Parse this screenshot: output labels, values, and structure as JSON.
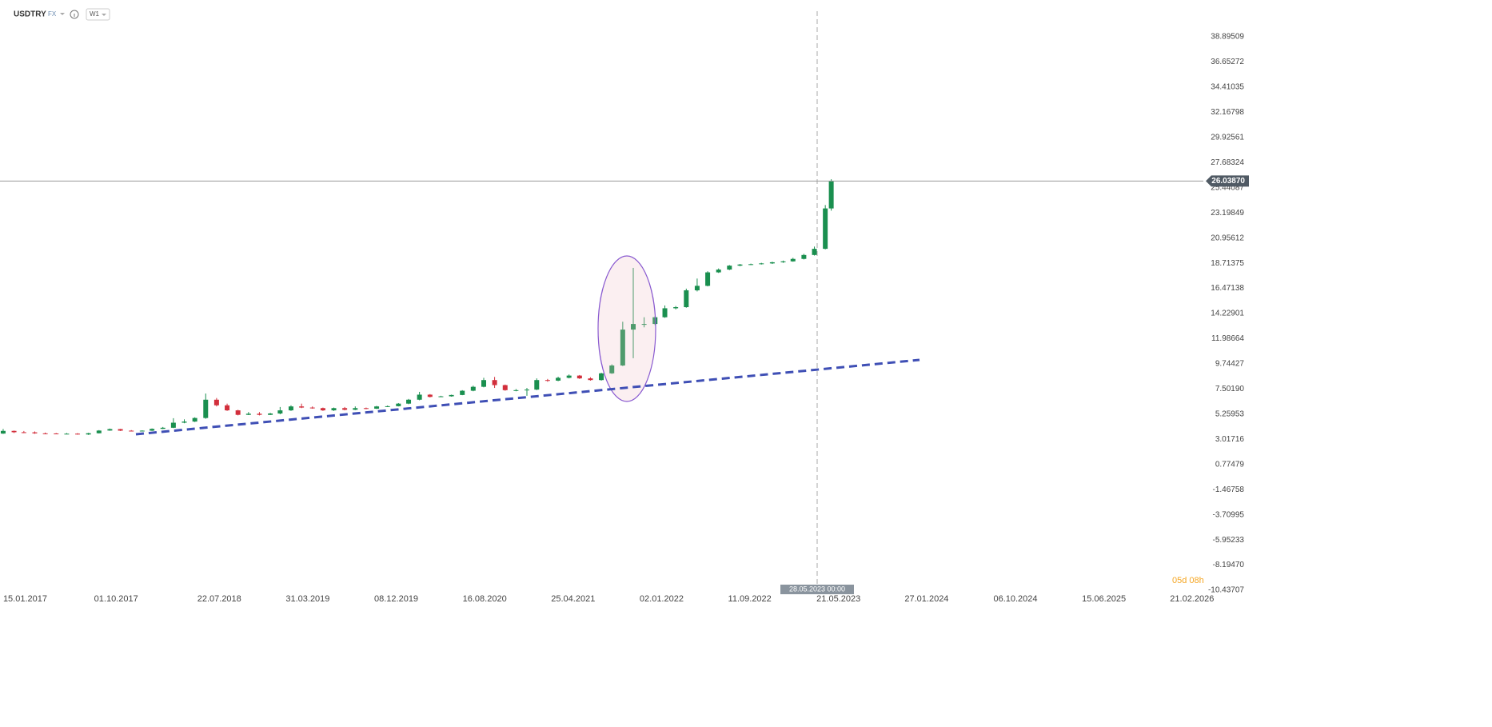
{
  "header": {
    "symbol": "USDTRY",
    "market": "FX",
    "interval": "W1"
  },
  "timer": "05d 08h",
  "crosshair_label": "28.05.2023 00:00",
  "chart_data": {
    "type": "candlestick",
    "up_color": "#1a8f4f",
    "down_color": "#d22f3c",
    "last_price": {
      "value": 26.0387,
      "label": "26.03870"
    },
    "xlim": [
      "06.01.2017",
      "27.05.2026"
    ],
    "xticks": [
      "15.01.2017",
      "01.10.2017",
      "22.07.2018",
      "31.03.2019",
      "08.12.2019",
      "16.08.2020",
      "25.04.2021",
      "02.01.2022",
      "11.09.2022",
      "21.05.2023",
      "27.01.2024",
      "06.10.2024",
      "15.06.2025",
      "21.02.2026"
    ],
    "ylim": [
      -10.72,
      42.18
    ],
    "yticks": [
      {
        "value": 38.89509,
        "label": "38.89509"
      },
      {
        "value": 36.65272,
        "label": "36.65272"
      },
      {
        "value": 34.41035,
        "label": "34.41035"
      },
      {
        "value": 32.16798,
        "label": "32.16798"
      },
      {
        "value": 29.92561,
        "label": "29.92561"
      },
      {
        "value": 27.68324,
        "label": "27.68324"
      },
      {
        "value": 25.44087,
        "label": "25.44087"
      },
      {
        "value": 23.19849,
        "label": "23.19849"
      },
      {
        "value": 20.95612,
        "label": "20.95612"
      },
      {
        "value": 18.71375,
        "label": "18.71375"
      },
      {
        "value": 16.47138,
        "label": "16.47138"
      },
      {
        "value": 14.22901,
        "label": "14.22901"
      },
      {
        "value": 11.98664,
        "label": "11.98664"
      },
      {
        "value": 9.74427,
        "label": "9.74427"
      },
      {
        "value": 7.5019,
        "label": "7.50190"
      },
      {
        "value": 5.25953,
        "label": "5.25953"
      },
      {
        "value": 3.01716,
        "label": "3.01716"
      },
      {
        "value": 0.77479,
        "label": "0.77479"
      },
      {
        "value": -1.46758,
        "label": "-1.46758"
      },
      {
        "value": -3.70995,
        "label": "-3.70995"
      },
      {
        "value": -5.95232,
        "label": "-5.95233"
      },
      {
        "value": -8.1947,
        "label": "-8.19470"
      },
      {
        "value": -10.43707,
        "label": "-10.43707"
      }
    ],
    "x": [
      "15.01.2017",
      "15.02.2017",
      "15.03.2017",
      "15.04.2017",
      "15.05.2017",
      "15.06.2017",
      "15.07.2017",
      "15.08.2017",
      "15.09.2017",
      "15.10.2017",
      "15.11.2017",
      "15.12.2017",
      "15.01.2018",
      "15.02.2018",
      "15.03.2018",
      "15.04.2018",
      "15.05.2018",
      "15.06.2018",
      "15.07.2018",
      "15.08.2018",
      "15.09.2018",
      "15.10.2018",
      "15.11.2018",
      "15.12.2018",
      "15.01.2019",
      "15.02.2019",
      "15.03.2019",
      "15.04.2019",
      "15.05.2019",
      "15.06.2019",
      "15.07.2019",
      "15.08.2019",
      "15.09.2019",
      "15.10.2019",
      "15.11.2019",
      "15.12.2019",
      "15.01.2020",
      "15.02.2020",
      "15.03.2020",
      "15.04.2020",
      "15.05.2020",
      "15.06.2020",
      "15.07.2020",
      "15.08.2020",
      "15.09.2020",
      "15.10.2020",
      "15.11.2020",
      "15.12.2020",
      "15.01.2021",
      "15.02.2021",
      "15.03.2021",
      "15.04.2021",
      "15.05.2021",
      "15.06.2021",
      "15.07.2021",
      "15.08.2021",
      "15.09.2021",
      "15.10.2021",
      "15.11.2021",
      "15.12.2021",
      "15.01.2022",
      "15.02.2022",
      "15.03.2022",
      "15.04.2022",
      "15.05.2022",
      "15.06.2022",
      "15.07.2022",
      "15.08.2022",
      "15.09.2022",
      "15.10.2022",
      "15.11.2022",
      "15.12.2022",
      "15.01.2023",
      "15.02.2023",
      "15.03.2023",
      "15.04.2023",
      "15.05.2023",
      "15.06.2023",
      "02.07.2023"
    ],
    "open": [
      3.53,
      3.77,
      3.65,
      3.64,
      3.55,
      3.54,
      3.52,
      3.52,
      3.45,
      3.56,
      3.8,
      3.93,
      3.79,
      3.75,
      3.79,
      3.95,
      4.05,
      4.5,
      4.6,
      4.92,
      6.55,
      6.05,
      5.6,
      5.2,
      5.3,
      5.2,
      5.32,
      5.6,
      5.95,
      5.85,
      5.8,
      5.6,
      5.8,
      5.65,
      5.8,
      5.75,
      5.95,
      5.97,
      6.2,
      6.55,
      7.0,
      6.8,
      6.85,
      6.97,
      7.35,
      7.7,
      8.3,
      7.85,
      7.4,
      7.4,
      7.45,
      8.3,
      8.25,
      8.5,
      8.7,
      8.45,
      8.3,
      8.9,
      9.6,
      12.8,
      13.3,
      13.3,
      13.9,
      14.7,
      14.8,
      16.3,
      16.7,
      17.9,
      18.15,
      18.5,
      18.6,
      18.63,
      18.7,
      18.8,
      18.88,
      19.1,
      19.45,
      20.0,
      23.6
    ],
    "high": [
      3.94,
      3.8,
      3.76,
      3.72,
      3.62,
      3.58,
      3.58,
      3.57,
      3.6,
      3.84,
      3.98,
      3.95,
      3.84,
      3.82,
      3.99,
      4.12,
      4.9,
      4.8,
      4.98,
      7.1,
      6.7,
      6.2,
      5.65,
      5.45,
      5.45,
      5.38,
      5.9,
      6.05,
      6.2,
      5.95,
      5.85,
      5.85,
      5.9,
      5.95,
      5.85,
      6.0,
      6.03,
      6.25,
      6.62,
      7.25,
      7.05,
      6.9,
      7.0,
      7.4,
      7.8,
      8.5,
      8.58,
      7.9,
      7.5,
      7.6,
      8.45,
      8.4,
      8.6,
      8.8,
      8.75,
      8.55,
      8.95,
      9.7,
      13.5,
      18.3,
      13.9,
      14.0,
      14.95,
      14.9,
      16.45,
      17.35,
      18.0,
      18.25,
      18.55,
      18.65,
      18.68,
      18.75,
      18.85,
      18.95,
      19.2,
      19.55,
      20.2,
      23.9,
      26.2
    ],
    "low": [
      3.5,
      3.58,
      3.57,
      3.51,
      3.47,
      3.48,
      3.5,
      3.43,
      3.41,
      3.54,
      3.78,
      3.76,
      3.72,
      3.72,
      3.76,
      3.93,
      4.02,
      4.45,
      4.56,
      4.85,
      5.95,
      5.55,
      5.15,
      5.18,
      5.15,
      5.18,
      5.25,
      5.55,
      5.8,
      5.75,
      5.55,
      5.55,
      5.6,
      5.62,
      5.7,
      5.72,
      5.9,
      5.95,
      6.15,
      6.5,
      6.75,
      6.78,
      6.82,
      6.95,
      7.3,
      7.65,
      7.6,
      7.35,
      7.3,
      6.9,
      7.4,
      8.15,
      8.2,
      8.45,
      8.4,
      8.25,
      8.25,
      8.85,
      9.55,
      10.25,
      13.0,
      13.2,
      13.85,
      14.6,
      14.75,
      16.2,
      16.65,
      17.85,
      18.1,
      18.45,
      18.55,
      18.6,
      18.65,
      18.75,
      18.85,
      19.05,
      19.4,
      19.95,
      23.4
    ],
    "close": [
      3.77,
      3.65,
      3.64,
      3.55,
      3.54,
      3.52,
      3.52,
      3.45,
      3.56,
      3.8,
      3.93,
      3.79,
      3.75,
      3.79,
      3.95,
      4.05,
      4.5,
      4.6,
      4.92,
      6.55,
      6.05,
      5.6,
      5.2,
      5.3,
      5.2,
      5.32,
      5.6,
      5.95,
      5.85,
      5.8,
      5.6,
      5.8,
      5.65,
      5.8,
      5.75,
      5.95,
      5.97,
      6.2,
      6.55,
      7.0,
      6.8,
      6.85,
      6.97,
      7.35,
      7.7,
      8.3,
      7.85,
      7.4,
      7.4,
      7.45,
      8.3,
      8.25,
      8.5,
      8.7,
      8.45,
      8.3,
      8.9,
      9.6,
      12.8,
      13.3,
      13.3,
      13.9,
      14.7,
      14.8,
      16.3,
      16.7,
      17.9,
      18.15,
      18.5,
      18.6,
      18.63,
      18.7,
      18.8,
      18.88,
      19.1,
      19.45,
      20.0,
      23.6,
      26.0387
    ]
  }
}
